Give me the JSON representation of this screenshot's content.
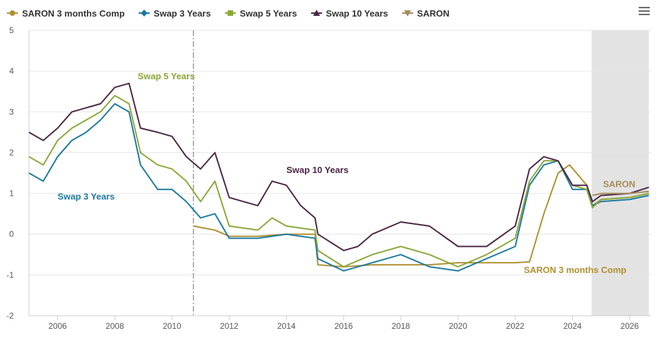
{
  "chart_data": {
    "type": "line",
    "title": "",
    "xlabel": "",
    "ylabel": "",
    "xlim": [
      2005,
      2026.75
    ],
    "ylim": [
      -2,
      5
    ],
    "x_ticks": [
      "2006",
      "2008",
      "2010",
      "2012",
      "2014",
      "2016",
      "2018",
      "2020",
      "2022",
      "2024",
      "2026"
    ],
    "y_ticks": [
      "5",
      "4",
      "3",
      "2",
      "1",
      "0",
      "-1",
      "-2"
    ],
    "grid": true,
    "legend_position": "top-left",
    "vertical_marker_x": 2010.75,
    "shaded_region": [
      2024.67,
      2026.67
    ],
    "series": [
      {
        "name": "SARON 3 months Comp",
        "color": "#b09030",
        "marker": "circle",
        "x": [
          2010.75,
          2011.5,
          2012.0,
          2013.0,
          2014.0,
          2015.0,
          2015.1,
          2016.0,
          2017.0,
          2019.0,
          2020.0,
          2021.0,
          2022.0,
          2022.5,
          2023.0,
          2023.5,
          2023.9,
          2024.5,
          2024.7,
          2025.0,
          2026.0,
          2026.67
        ],
        "y": [
          0.2,
          0.1,
          -0.05,
          -0.05,
          0.0,
          0.0,
          -0.75,
          -0.8,
          -0.75,
          -0.75,
          -0.7,
          -0.7,
          -0.7,
          -0.68,
          0.5,
          1.5,
          1.7,
          1.2,
          0.7,
          0.85,
          0.9,
          1.0
        ]
      },
      {
        "name": "Swap 3 Years",
        "color": "#1b79a1",
        "marker": "diamond",
        "x": [
          2005.0,
          2005.5,
          2006.0,
          2006.5,
          2007.0,
          2007.5,
          2008.0,
          2008.5,
          2008.9,
          2009.5,
          2010.0,
          2010.5,
          2011.0,
          2011.5,
          2012.0,
          2013.0,
          2014.0,
          2015.0,
          2015.1,
          2016.0,
          2017.0,
          2018.0,
          2019.0,
          2020.0,
          2021.0,
          2022.0,
          2022.5,
          2023.0,
          2023.5,
          2024.0,
          2024.5,
          2024.7,
          2025.0,
          2026.0,
          2026.67
        ],
        "y": [
          1.5,
          1.3,
          1.9,
          2.3,
          2.5,
          2.8,
          3.2,
          3.0,
          1.7,
          1.1,
          1.1,
          0.8,
          0.4,
          0.5,
          -0.1,
          -0.1,
          0.0,
          -0.1,
          -0.6,
          -0.9,
          -0.7,
          -0.5,
          -0.8,
          -0.9,
          -0.6,
          -0.3,
          1.2,
          1.7,
          1.8,
          1.1,
          1.1,
          0.7,
          0.8,
          0.85,
          0.95
        ]
      },
      {
        "name": "Swap 5 Years",
        "color": "#8aa83a",
        "marker": "square",
        "x": [
          2005.0,
          2005.5,
          2006.0,
          2006.5,
          2007.0,
          2007.5,
          2008.0,
          2008.5,
          2008.9,
          2009.5,
          2010.0,
          2010.5,
          2011.0,
          2011.5,
          2012.0,
          2013.0,
          2013.5,
          2014.0,
          2015.0,
          2015.1,
          2016.0,
          2017.0,
          2018.0,
          2019.0,
          2020.0,
          2021.0,
          2022.0,
          2022.5,
          2023.0,
          2023.5,
          2024.0,
          2024.5,
          2024.7,
          2025.0,
          2026.0,
          2026.67
        ],
        "y": [
          1.9,
          1.7,
          2.3,
          2.6,
          2.8,
          3.0,
          3.4,
          3.2,
          2.0,
          1.7,
          1.6,
          1.3,
          0.8,
          1.3,
          0.2,
          0.1,
          0.4,
          0.2,
          0.1,
          -0.4,
          -0.8,
          -0.5,
          -0.3,
          -0.5,
          -0.8,
          -0.5,
          -0.1,
          1.3,
          1.8,
          1.8,
          1.2,
          1.1,
          0.65,
          0.85,
          0.9,
          1.0
        ]
      },
      {
        "name": "Swap 10 Years",
        "color": "#4b2545",
        "marker": "triangle",
        "x": [
          2005.0,
          2005.5,
          2006.0,
          2006.5,
          2007.0,
          2007.5,
          2008.0,
          2008.5,
          2008.9,
          2009.5,
          2010.0,
          2010.5,
          2011.0,
          2011.5,
          2012.0,
          2012.5,
          2013.0,
          2013.5,
          2014.0,
          2014.5,
          2015.0,
          2015.1,
          2016.0,
          2016.5,
          2017.0,
          2018.0,
          2019.0,
          2020.0,
          2021.0,
          2022.0,
          2022.5,
          2023.0,
          2023.5,
          2024.0,
          2024.5,
          2024.7,
          2025.0,
          2026.0,
          2026.67
        ],
        "y": [
          2.5,
          2.3,
          2.6,
          3.0,
          3.1,
          3.2,
          3.6,
          3.7,
          2.6,
          2.5,
          2.4,
          1.9,
          1.6,
          2.0,
          0.9,
          0.8,
          0.7,
          1.3,
          1.2,
          0.7,
          0.4,
          0.0,
          -0.4,
          -0.3,
          0.0,
          0.3,
          0.2,
          -0.3,
          -0.3,
          0.2,
          1.6,
          1.9,
          1.8,
          1.2,
          1.2,
          0.8,
          0.95,
          1.0,
          1.15
        ]
      },
      {
        "name": "SARON",
        "color": "#a58b5b",
        "marker": "triangle-down",
        "x": [
          2024.7,
          2025.0,
          2026.0,
          2026.67
        ],
        "y": [
          0.95,
          1.0,
          1.0,
          1.05
        ]
      }
    ],
    "annotations": [
      {
        "text": "Swap 5 Years",
        "series": 2
      },
      {
        "text": "Swap 10 Years",
        "series": 3
      },
      {
        "text": "Swap 3 Years",
        "series": 1
      },
      {
        "text": "SARON",
        "series": 4
      },
      {
        "text": "SARON 3 months Comp",
        "series": 0
      }
    ]
  }
}
